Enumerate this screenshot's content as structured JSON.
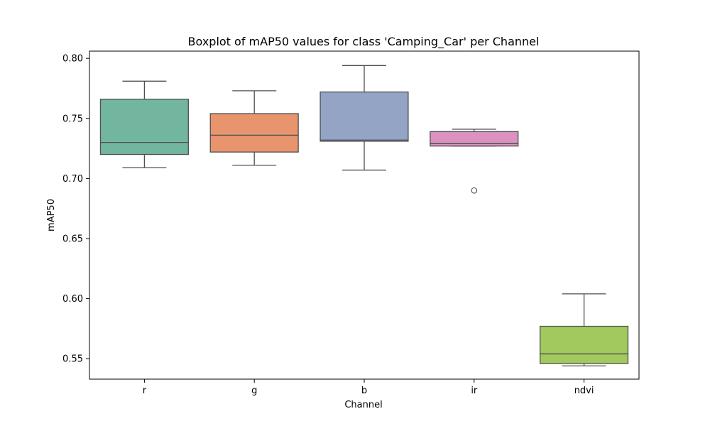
{
  "chart_data": {
    "type": "boxplot",
    "title": "Boxplot of mAP50 values for class 'Camping_Car' per Channel",
    "xlabel": "Channel",
    "ylabel": "mAP50",
    "ylim": [
      0.533,
      0.806
    ],
    "yticks": [
      0.55,
      0.6,
      0.65,
      0.7,
      0.75,
      0.8
    ],
    "ytick_labels": [
      "0.55",
      "0.60",
      "0.65",
      "0.70",
      "0.75",
      "0.80"
    ],
    "grid": false,
    "categories": [
      "r",
      "g",
      "b",
      "ir",
      "ndvi"
    ],
    "series": [
      {
        "category": "r",
        "color": "#73b6a0",
        "whisker_low": 0.709,
        "q1": 0.72,
        "median": 0.73,
        "q3": 0.766,
        "whisker_high": 0.781,
        "outliers": []
      },
      {
        "category": "g",
        "color": "#e8956e",
        "whisker_low": 0.711,
        "q1": 0.722,
        "median": 0.736,
        "q3": 0.754,
        "whisker_high": 0.773,
        "outliers": []
      },
      {
        "category": "b",
        "color": "#93a4c4",
        "whisker_low": 0.707,
        "q1": 0.731,
        "median": 0.732,
        "q3": 0.772,
        "whisker_high": 0.794,
        "outliers": []
      },
      {
        "category": "ir",
        "color": "#db92c1",
        "whisker_low": 0.727,
        "q1": 0.727,
        "median": 0.729,
        "q3": 0.739,
        "whisker_high": 0.741,
        "outliers": [
          0.69
        ]
      },
      {
        "category": "ndvi",
        "color": "#a1c95d",
        "whisker_low": 0.544,
        "q1": 0.546,
        "median": 0.554,
        "q3": 0.577,
        "whisker_high": 0.604,
        "outliers": []
      }
    ]
  }
}
